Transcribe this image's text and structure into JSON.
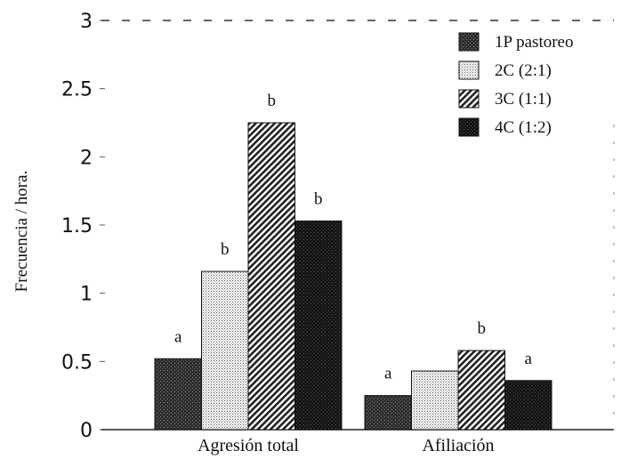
{
  "chart_data": {
    "type": "bar",
    "title": "",
    "xlabel": "",
    "ylabel": "Frecuencia / hora.",
    "ylim": [
      0,
      3
    ],
    "yticks": [
      "0",
      "0.5",
      "1",
      "1.5",
      "2",
      "2.5",
      "3"
    ],
    "categories": [
      "Agresión total",
      "Afiliación"
    ],
    "series": [
      {
        "name": "1P pastoreo",
        "values": [
          0.52,
          0.25
        ],
        "labels": [
          "a",
          "a"
        ]
      },
      {
        "name": "2C (2:1)",
        "values": [
          1.16,
          0.43
        ],
        "labels": [
          "b",
          ""
        ]
      },
      {
        "name": "3C (1:1)",
        "values": [
          2.25,
          0.58
        ],
        "labels": [
          "b",
          "b"
        ]
      },
      {
        "name": "4C (1:2)",
        "values": [
          1.53,
          0.36
        ],
        "labels": [
          "b",
          "a"
        ]
      }
    ],
    "legend_position": "top-right",
    "grid": false
  }
}
